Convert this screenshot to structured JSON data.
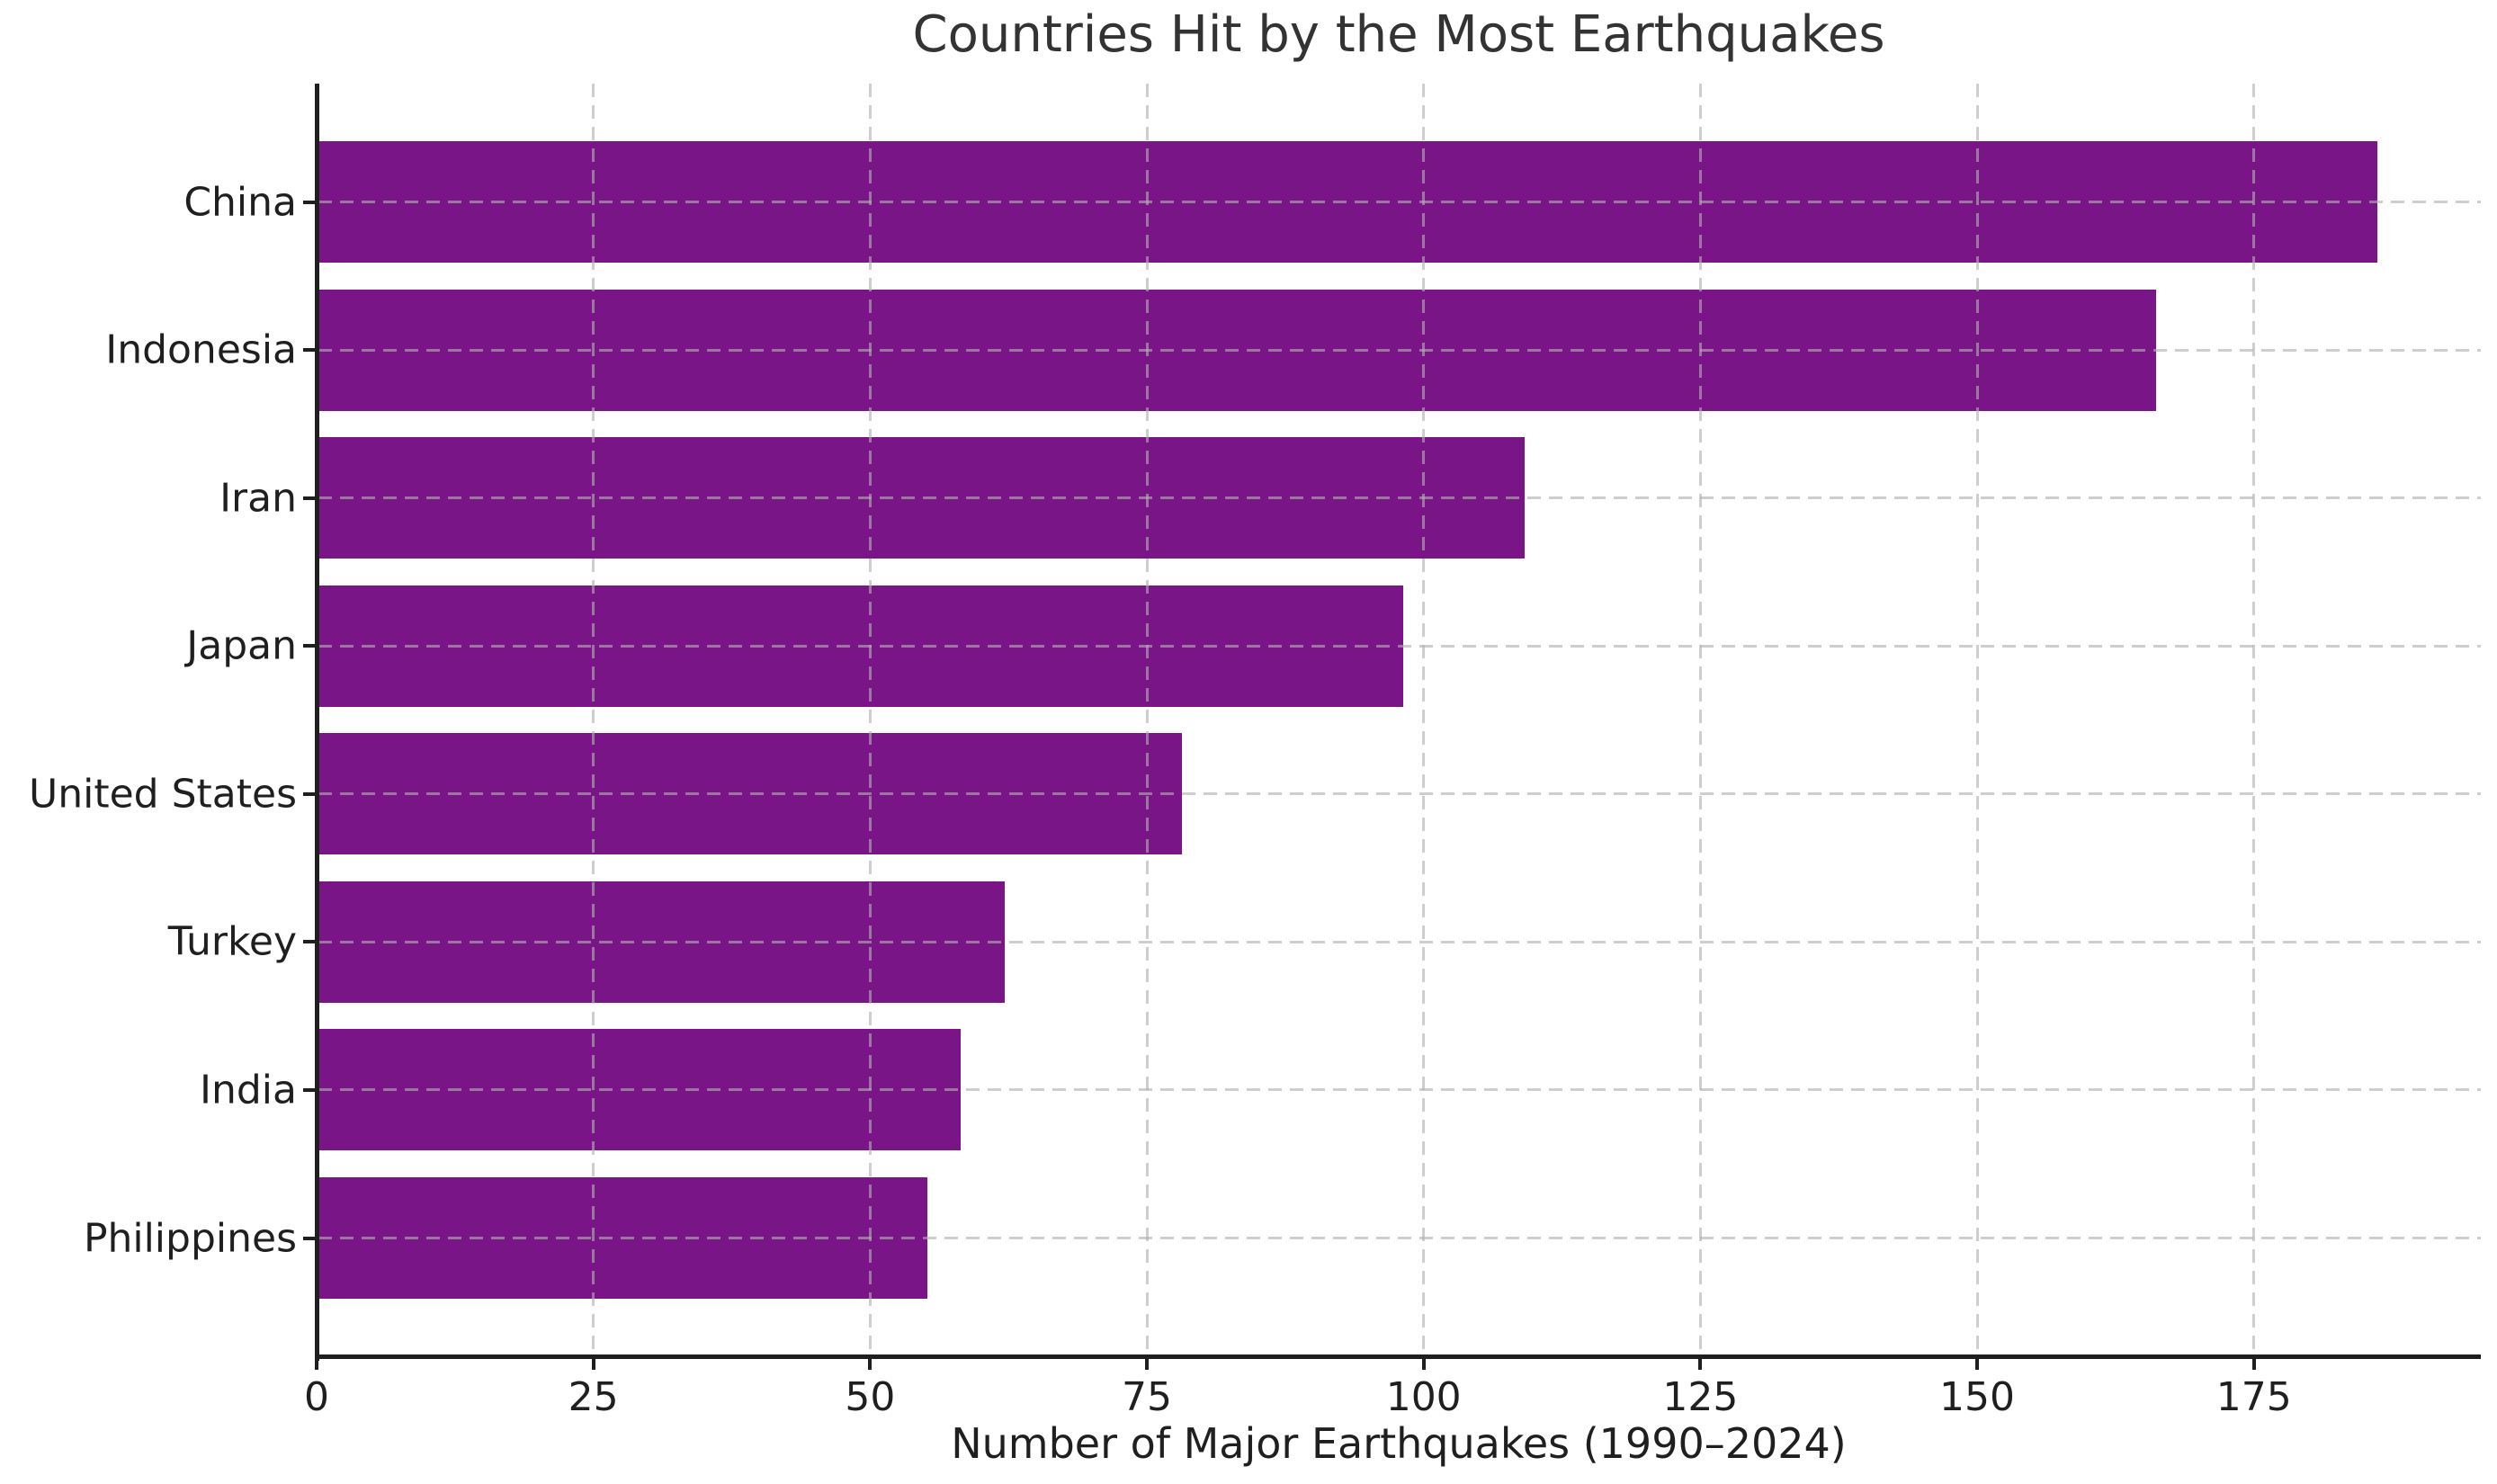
{
  "chart_data": {
    "type": "bar",
    "orientation": "horizontal",
    "title": "Countries Hit by the Most Earthquakes",
    "xlabel": "Number of Major Earthquakes (1990–2024)",
    "ylabel": "",
    "categories": [
      "China",
      "Indonesia",
      "Iran",
      "Japan",
      "United States",
      "Turkey",
      "India",
      "Philippines"
    ],
    "values": [
      186,
      166,
      109,
      98,
      78,
      62,
      58,
      55
    ],
    "xticks": [
      0,
      25,
      50,
      75,
      100,
      125,
      150,
      175
    ],
    "xlim": [
      0,
      195.5
    ],
    "grid": true,
    "grid_style": "dashed",
    "legend": "none",
    "bar_color": "#7a1588",
    "grid_color": "#b0b0b0",
    "text_color": "#1f1f1f",
    "background": "#ffffff"
  }
}
